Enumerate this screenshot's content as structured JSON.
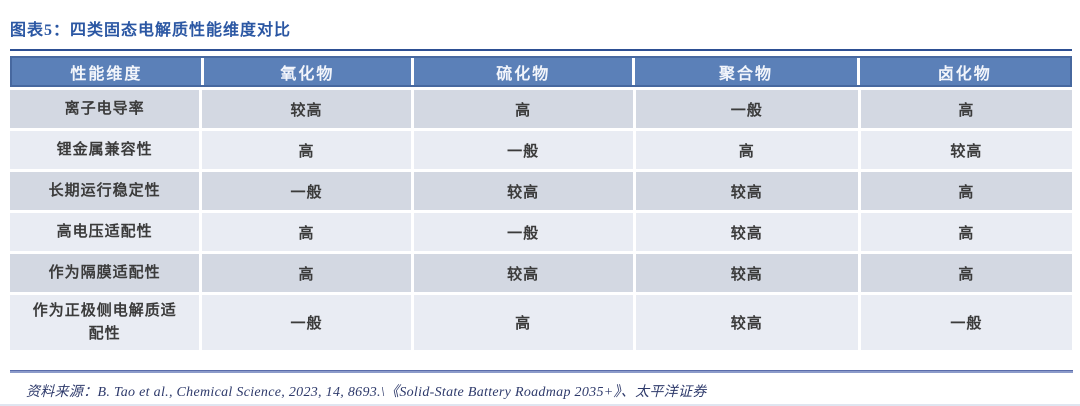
{
  "figure": {
    "title": "图表5：四类固态电解质性能维度对比",
    "source": "资料来源：B. Tao et al., Chemical Science, 2023, 14, 8693.\\《Solid-State Battery Roadmap 2035+》、太平洋证券"
  },
  "colors": {
    "title_blue": "#2b57a3",
    "header_bg": "#5b80b8",
    "header_border": "#47689f",
    "row_odd_bg": "#d3d8e2",
    "row_even_bg": "#e9ecf3",
    "rule_dark": "#2d4f93",
    "rule_footer": "#8c9bca",
    "cell_text": "#3b3b3b"
  },
  "table": {
    "headers": [
      "性能维度",
      "氧化物",
      "硫化物",
      "聚合物",
      "卤化物"
    ],
    "rows": [
      {
        "label": "离子电导率",
        "values": [
          "较高",
          "高",
          "一般",
          "高"
        ]
      },
      {
        "label": "锂金属兼容性",
        "values": [
          "高",
          "一般",
          "高",
          "较高"
        ]
      },
      {
        "label": "长期运行稳定性",
        "values": [
          "一般",
          "较高",
          "较高",
          "高"
        ]
      },
      {
        "label": "高电压适配性",
        "values": [
          "高",
          "一般",
          "较高",
          "高"
        ]
      },
      {
        "label": "作为隔膜适配性",
        "values": [
          "高",
          "较高",
          "较高",
          "高"
        ]
      },
      {
        "label": "作为正极侧电解质适配性",
        "values": [
          "一般",
          "高",
          "较高",
          "一般"
        ]
      }
    ]
  },
  "chart_data": {
    "type": "table",
    "title": "图表5：四类固态电解质性能维度对比",
    "columns": [
      "性能维度",
      "氧化物",
      "硫化物",
      "聚合物",
      "卤化物"
    ],
    "rows": [
      [
        "离子电导率",
        "较高",
        "高",
        "一般",
        "高"
      ],
      [
        "锂金属兼容性",
        "高",
        "一般",
        "高",
        "较高"
      ],
      [
        "长期运行稳定性",
        "一般",
        "较高",
        "较高",
        "高"
      ],
      [
        "高电压适配性",
        "高",
        "一般",
        "较高",
        "高"
      ],
      [
        "作为隔膜适配性",
        "高",
        "较高",
        "较高",
        "高"
      ],
      [
        "作为正极侧电解质适配性",
        "一般",
        "高",
        "较高",
        "一般"
      ]
    ],
    "source": "资料来源：B. Tao et al., Chemical Science, 2023, 14, 8693.\\《Solid-State Battery Roadmap 2035+》、太平洋证券"
  }
}
